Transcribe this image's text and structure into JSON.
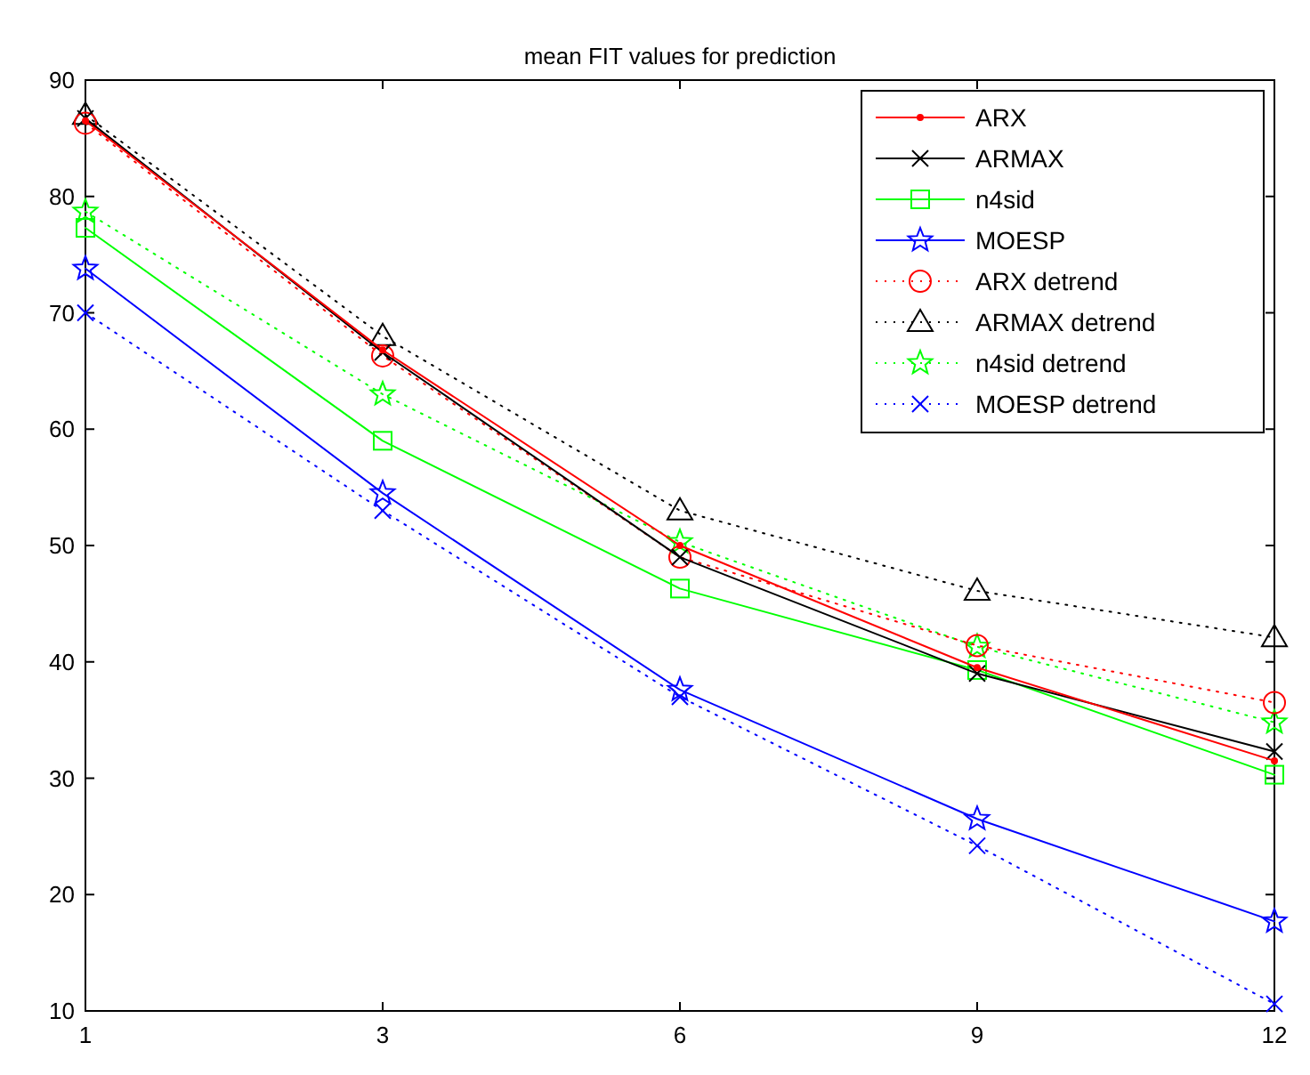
{
  "chart_data": {
    "type": "line",
    "title": "mean FIT values for prediction",
    "categories": [
      "1",
      "3",
      "6",
      "9",
      "12"
    ],
    "ylim": [
      10,
      90
    ],
    "yticks": [
      10,
      20,
      30,
      40,
      50,
      60,
      70,
      80,
      90
    ],
    "grid": false,
    "legend": "top right",
    "series": [
      {
        "name": "ARX",
        "color": "#ff0000",
        "marker": "point",
        "line_style": "solid",
        "values": [
          86.5,
          66.8,
          50,
          39.5,
          31.5
        ]
      },
      {
        "name": "ARMAX",
        "color": "#000000",
        "marker": "cross",
        "line_style": "solid",
        "values": [
          86.7,
          66.6,
          49,
          39,
          32.3
        ]
      },
      {
        "name": "n4sid",
        "color": "#00ff00",
        "marker": "square",
        "line_style": "solid",
        "values": [
          77.3,
          59,
          46.3,
          39.3,
          30.3
        ]
      },
      {
        "name": "MOESP",
        "color": "#0000ff",
        "marker": "star",
        "line_style": "solid",
        "values": [
          73.8,
          54.5,
          37.6,
          26.5,
          17.7
        ]
      },
      {
        "name": "ARX detrend",
        "color": "#ff0000",
        "marker": "circle",
        "line_style": "dotted",
        "values": [
          86.3,
          66.3,
          49,
          41.4,
          36.5
        ]
      },
      {
        "name": "ARMAX detrend",
        "color": "#000000",
        "marker": "triangle",
        "line_style": "dotted",
        "values": [
          87,
          68,
          53,
          46.1,
          42.1
        ]
      },
      {
        "name": "n4sid detrend",
        "color": "#00ff00",
        "marker": "star",
        "line_style": "dotted",
        "values": [
          78.7,
          63,
          50.3,
          41.3,
          34.8
        ]
      },
      {
        "name": "MOESP detrend",
        "color": "#0000ff",
        "marker": "cross",
        "line_style": "dotted",
        "values": [
          70,
          53,
          37,
          24.2,
          10.6
        ]
      }
    ]
  }
}
